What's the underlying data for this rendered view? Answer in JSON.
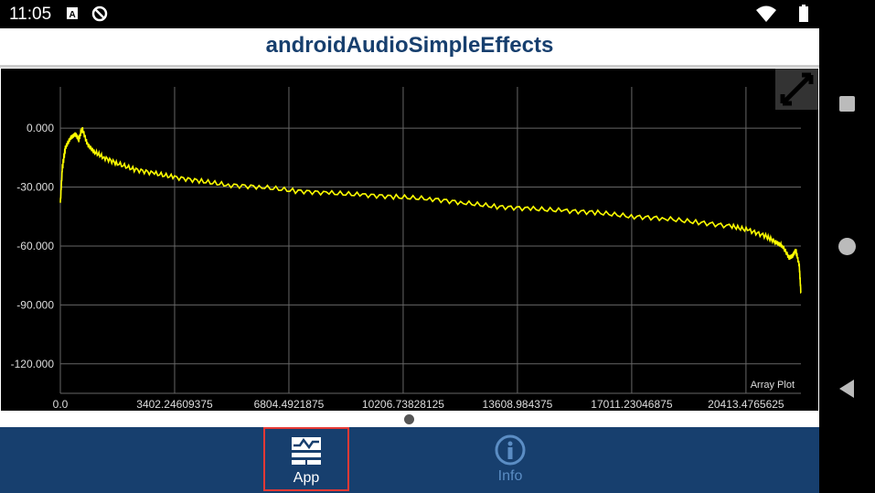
{
  "status": {
    "time": "11:05",
    "icons": [
      "a-notification-icon",
      "circle-slash-icon",
      "wifi-icon",
      "battery-icon"
    ]
  },
  "app": {
    "title": "androidAudioSimpleEffects"
  },
  "plot_label": "Array Plot",
  "chart_data": {
    "type": "line",
    "title": "",
    "xlabel": "",
    "ylabel": "",
    "xlim": [
      0,
      22050
    ],
    "ylim": [
      -135,
      21
    ],
    "grid": true,
    "color": "#ffff00",
    "xticks": [
      "0.0",
      "3402.24609375",
      "6804.4921875",
      "10206.73828125",
      "13608.984375",
      "17011.23046875",
      "20413.4765625"
    ],
    "yticks": [
      "0.000",
      "-30.000",
      "-60.000",
      "-90.000",
      "-120.000"
    ],
    "series": [
      {
        "x": [
          0,
          60,
          150,
          300,
          450,
          550,
          650,
          800,
          1000,
          1300,
          1700,
          2200,
          2800,
          3400,
          4200,
          5000,
          6000,
          7000,
          8000,
          9000,
          10000,
          11000,
          12000,
          13000,
          14000,
          15000,
          16000,
          17000,
          18000,
          19000,
          20000,
          20500,
          21000,
          21300,
          21500,
          21700,
          21800,
          21900,
          22000,
          22050
        ],
        "y": [
          -38,
          -20,
          -10,
          -5,
          -3,
          -6,
          0,
          -8,
          -12,
          -15,
          -18,
          -21,
          -23,
          -25,
          -27,
          -29,
          -30,
          -32,
          -33,
          -34,
          -35,
          -36,
          -38,
          -40,
          -41,
          -42,
          -43,
          -45,
          -46,
          -48,
          -50,
          -52,
          -55,
          -58,
          -60,
          -66,
          -65,
          -62,
          -70,
          -84
        ]
      }
    ]
  },
  "nav": {
    "tabs": [
      {
        "label": "App",
        "selected": true
      },
      {
        "label": "Info",
        "selected": false
      }
    ]
  }
}
